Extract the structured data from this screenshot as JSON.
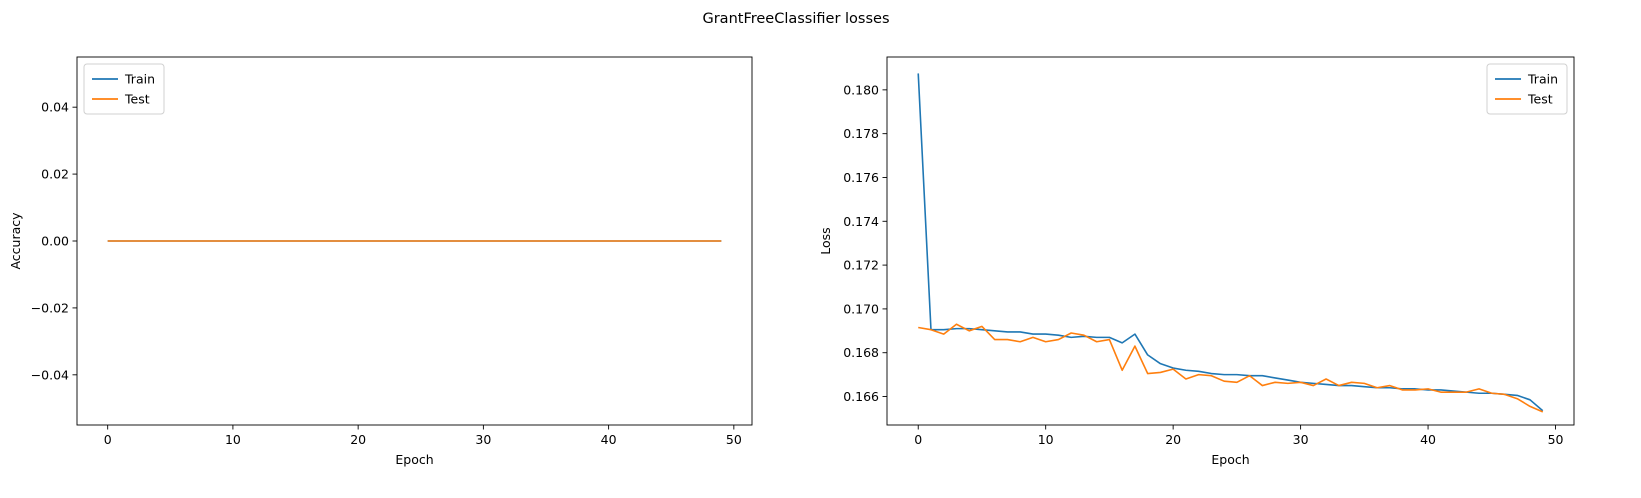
{
  "figure": {
    "suptitle": "GrantFreeClassifier losses"
  },
  "chart_data": [
    {
      "type": "line",
      "xlabel": "Epoch",
      "ylabel": "Accuracy",
      "xlim": [
        -2.45,
        51.45
      ],
      "ylim": [
        -0.055,
        0.055
      ],
      "xticks": [
        0,
        10,
        20,
        30,
        40,
        50
      ],
      "yticks": [
        -0.04,
        -0.02,
        0.0,
        0.02,
        0.04
      ],
      "ytick_labels": [
        "−0.04",
        "−0.02",
        "0.00",
        "0.02",
        "0.04"
      ],
      "grid": false,
      "legend_position": "upper-left",
      "x": [
        0,
        1,
        2,
        3,
        4,
        5,
        6,
        7,
        8,
        9,
        10,
        11,
        12,
        13,
        14,
        15,
        16,
        17,
        18,
        19,
        20,
        21,
        22,
        23,
        24,
        25,
        26,
        27,
        28,
        29,
        30,
        31,
        32,
        33,
        34,
        35,
        36,
        37,
        38,
        39,
        40,
        41,
        42,
        43,
        44,
        45,
        46,
        47,
        48,
        49
      ],
      "series": [
        {
          "name": "Train",
          "color": "#1f77b4",
          "values": [
            0,
            0,
            0,
            0,
            0,
            0,
            0,
            0,
            0,
            0,
            0,
            0,
            0,
            0,
            0,
            0,
            0,
            0,
            0,
            0,
            0,
            0,
            0,
            0,
            0,
            0,
            0,
            0,
            0,
            0,
            0,
            0,
            0,
            0,
            0,
            0,
            0,
            0,
            0,
            0,
            0,
            0,
            0,
            0,
            0,
            0,
            0,
            0,
            0,
            0
          ]
        },
        {
          "name": "Test",
          "color": "#ff7f0e",
          "values": [
            0,
            0,
            0,
            0,
            0,
            0,
            0,
            0,
            0,
            0,
            0,
            0,
            0,
            0,
            0,
            0,
            0,
            0,
            0,
            0,
            0,
            0,
            0,
            0,
            0,
            0,
            0,
            0,
            0,
            0,
            0,
            0,
            0,
            0,
            0,
            0,
            0,
            0,
            0,
            0,
            0,
            0,
            0,
            0,
            0,
            0,
            0,
            0,
            0,
            0
          ]
        }
      ]
    },
    {
      "type": "line",
      "xlabel": "Epoch",
      "ylabel": "Loss",
      "xlim": [
        -2.45,
        51.45
      ],
      "ylim": [
        0.1647,
        0.1815
      ],
      "xticks": [
        0,
        10,
        20,
        30,
        40,
        50
      ],
      "yticks": [
        0.166,
        0.168,
        0.17,
        0.172,
        0.174,
        0.176,
        0.178,
        0.18
      ],
      "ytick_labels": [
        "0.166",
        "0.168",
        "0.170",
        "0.172",
        "0.174",
        "0.176",
        "0.178",
        "0.180"
      ],
      "grid": false,
      "legend_position": "upper-right",
      "x": [
        0,
        1,
        2,
        3,
        4,
        5,
        6,
        7,
        8,
        9,
        10,
        11,
        12,
        13,
        14,
        15,
        16,
        17,
        18,
        19,
        20,
        21,
        22,
        23,
        24,
        25,
        26,
        27,
        28,
        29,
        30,
        31,
        32,
        33,
        34,
        35,
        36,
        37,
        38,
        39,
        40,
        41,
        42,
        43,
        44,
        45,
        46,
        47,
        48,
        49
      ],
      "series": [
        {
          "name": "Train",
          "color": "#1f77b4",
          "values": [
            0.18075,
            0.16905,
            0.16905,
            0.1691,
            0.1691,
            0.16905,
            0.169,
            0.16895,
            0.16895,
            0.16885,
            0.16885,
            0.1688,
            0.1687,
            0.16875,
            0.1687,
            0.1687,
            0.16845,
            0.16885,
            0.1679,
            0.1675,
            0.1673,
            0.1672,
            0.16715,
            0.16705,
            0.167,
            0.167,
            0.16695,
            0.16695,
            0.16685,
            0.16675,
            0.16665,
            0.1666,
            0.16655,
            0.1665,
            0.1665,
            0.16645,
            0.1664,
            0.1664,
            0.16635,
            0.16635,
            0.1663,
            0.1663,
            0.16625,
            0.1662,
            0.16615,
            0.16615,
            0.1661,
            0.16605,
            0.16585,
            0.16535
          ]
        },
        {
          "name": "Test",
          "color": "#ff7f0e",
          "values": [
            0.16915,
            0.16905,
            0.16885,
            0.1693,
            0.169,
            0.1692,
            0.1686,
            0.1686,
            0.1685,
            0.1687,
            0.1685,
            0.1686,
            0.1689,
            0.1688,
            0.1685,
            0.1686,
            0.1672,
            0.1683,
            0.16705,
            0.1671,
            0.16725,
            0.1668,
            0.167,
            0.16695,
            0.1667,
            0.16665,
            0.16695,
            0.1665,
            0.16665,
            0.1666,
            0.16665,
            0.1665,
            0.1668,
            0.1665,
            0.16665,
            0.1666,
            0.1664,
            0.1665,
            0.1663,
            0.1663,
            0.16635,
            0.1662,
            0.1662,
            0.1662,
            0.16635,
            0.16615,
            0.1661,
            0.1659,
            0.16555,
            0.1653
          ]
        }
      ]
    }
  ]
}
